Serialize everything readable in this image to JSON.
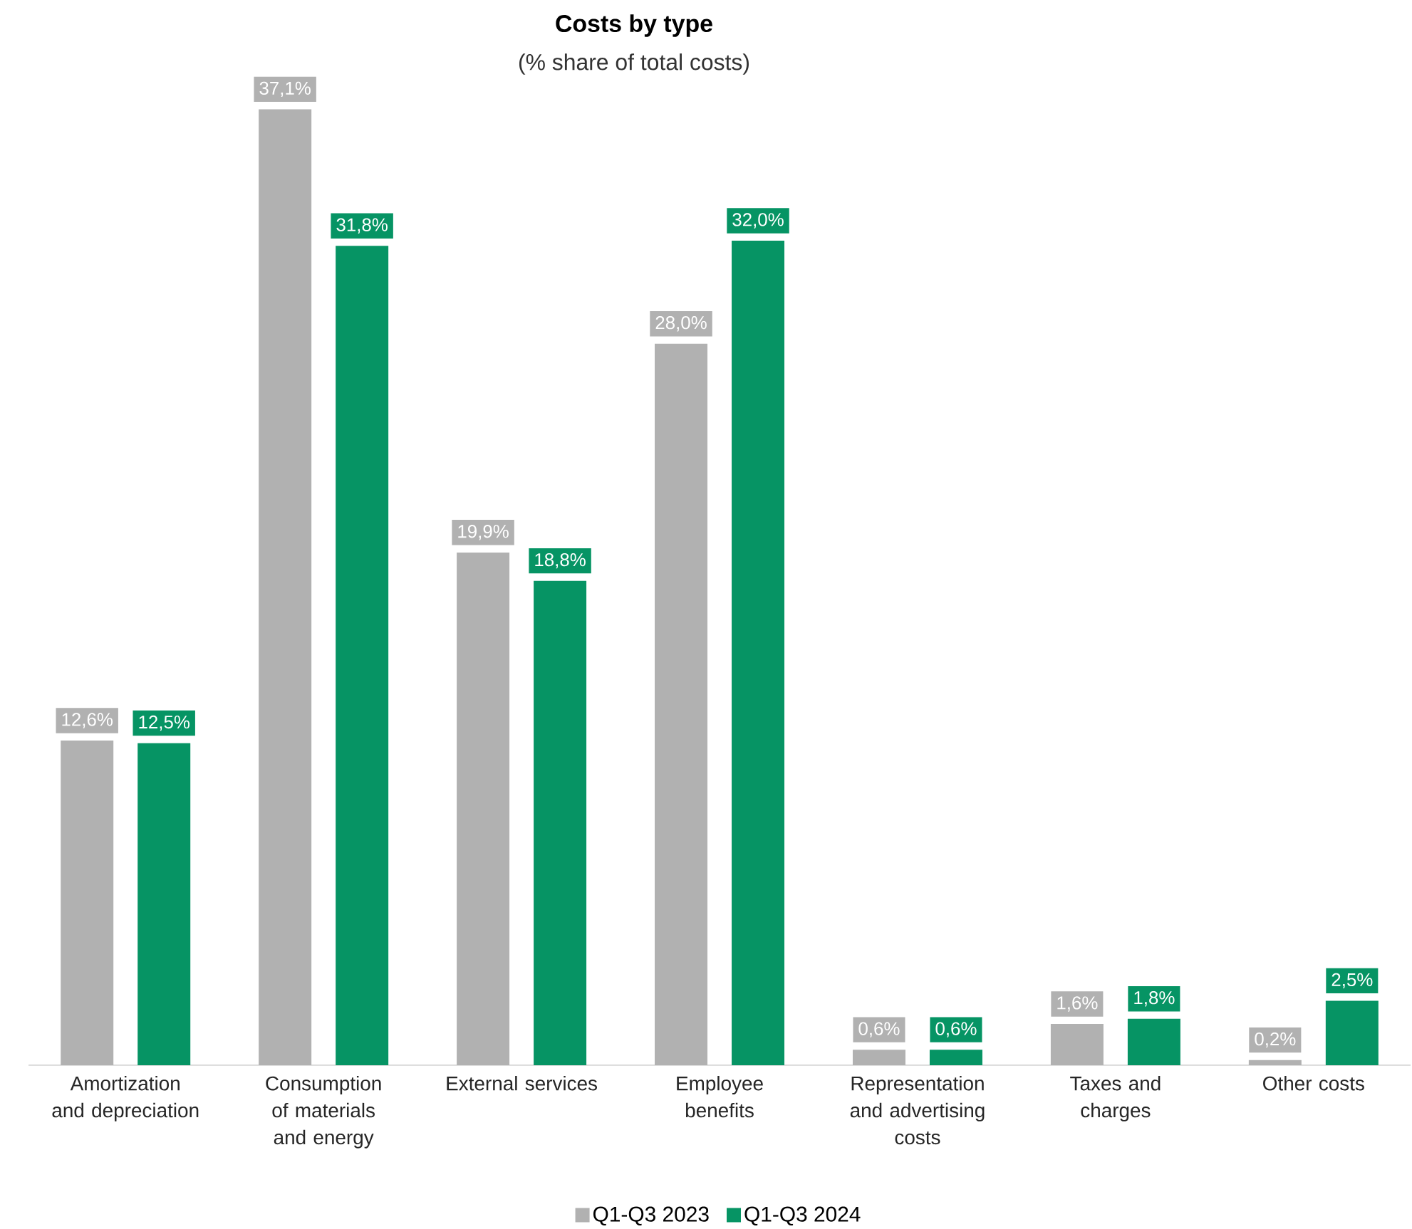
{
  "chart_data": {
    "type": "bar",
    "title": "Costs by type",
    "subtitle": "(% share of total costs)",
    "categories": [
      "Amortization and depreciation",
      "Consumption of materials and energy",
      "External services",
      "Employee benefits",
      "Representation and advertising costs",
      "Taxes and charges",
      "Other costs"
    ],
    "series": [
      {
        "name": "Q1-Q3 2023",
        "color": "#b1b1b1",
        "values": [
          12.6,
          37.1,
          19.9,
          28.0,
          0.6,
          1.6,
          0.2
        ],
        "value_labels": [
          "12,6%",
          "37,1%",
          "19,9%",
          "28,0%",
          "0,6%",
          "1,6%",
          "0,2%"
        ]
      },
      {
        "name": "Q1-Q3 2024",
        "color": "#069464",
        "values": [
          12.5,
          31.8,
          18.8,
          32.0,
          0.6,
          1.8,
          2.5
        ],
        "value_labels": [
          "12,5%",
          "31,8%",
          "18,8%",
          "32,0%",
          "0,6%",
          "1,8%",
          "2,5%"
        ]
      }
    ],
    "legend": "bottom"
  }
}
